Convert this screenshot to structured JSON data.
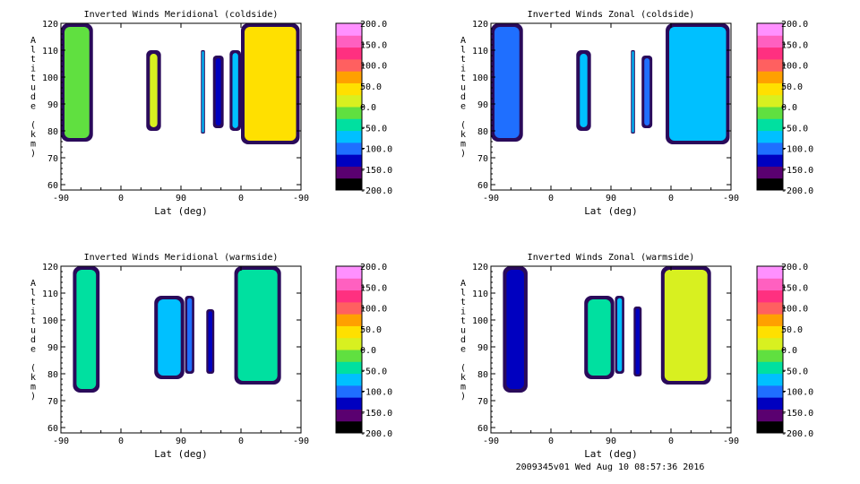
{
  "footer": "2009345v01 Wed Aug 10 08:57:36 2016",
  "colorbar_labels": [
    "200.0",
    "150.0",
    "100.0",
    "50.0",
    "0.0",
    "-50.0",
    "-100.0",
    "-150.0",
    "-200.0"
  ],
  "colorbar_colors": [
    "#000000",
    "#5a0070",
    "#0000c0",
    "#1f6fff",
    "#00c0ff",
    "#00e0a0",
    "#60e040",
    "#d8f020",
    "#ffe000",
    "#ffa000",
    "#ff6060",
    "#ff3080",
    "#ff60c0",
    "#ff90ff"
  ],
  "chart_data": [
    {
      "type": "heatmap",
      "title": "Inverted Winds Meridional (coldside)",
      "xlabel": "Lat (deg)",
      "ylabel": "Altitude (km)",
      "x_ticks": [
        "-90",
        "0",
        "90",
        "0",
        "-90"
      ],
      "y_ticks": [
        "60",
        "70",
        "80",
        "90",
        "100",
        "110",
        "120"
      ],
      "ylim": [
        58,
        120
      ],
      "zlim": [
        -200,
        200
      ],
      "blocks": [
        {
          "x": [
            -90,
            -42
          ],
          "y": [
            76,
            120
          ],
          "value": -20
        },
        {
          "x": [
            38,
            60
          ],
          "y": [
            80,
            110
          ],
          "value": 10
        },
        {
          "x": [
            120,
            126
          ],
          "y": [
            79,
            110
          ],
          "value": -60
        },
        {
          "x": [
            138,
            154
          ],
          "y": [
            81,
            108
          ],
          "value": -120
        },
        {
          "x": [
            163,
            180
          ],
          "y": [
            80,
            110
          ],
          "value": -80
        },
        {
          "x": [
            180,
            268
          ],
          "y": [
            75,
            120
          ],
          "value": 30
        }
      ]
    },
    {
      "type": "heatmap",
      "title": "Inverted Winds Zonal (coldside)",
      "xlabel": "Lat (deg)",
      "ylabel": "Altitude (km)",
      "x_ticks": [
        "-90",
        "0",
        "90",
        "0",
        "-90"
      ],
      "y_ticks": [
        "60",
        "70",
        "80",
        "90",
        "100",
        "110",
        "120"
      ],
      "ylim": [
        58,
        120
      ],
      "zlim": [
        -200,
        200
      ],
      "blocks": [
        {
          "x": [
            -90,
            -42
          ],
          "y": [
            76,
            120
          ],
          "value": -90
        },
        {
          "x": [
            38,
            60
          ],
          "y": [
            80,
            110
          ],
          "value": -60
        },
        {
          "x": [
            120,
            126
          ],
          "y": [
            79,
            110
          ],
          "value": -70
        },
        {
          "x": [
            136,
            152
          ],
          "y": [
            81,
            108
          ],
          "value": -110
        },
        {
          "x": [
            172,
            268
          ],
          "y": [
            75,
            120
          ],
          "value": -60
        }
      ]
    },
    {
      "type": "heatmap",
      "title": "Inverted Winds Meridional (warmside)",
      "xlabel": "Lat (deg)",
      "ylabel": "Altitude (km)",
      "x_ticks": [
        "-90",
        "0",
        "90",
        "0",
        "-90"
      ],
      "y_ticks": [
        "60",
        "70",
        "80",
        "90",
        "100",
        "110",
        "120"
      ],
      "ylim": [
        58,
        120
      ],
      "zlim": [
        -200,
        200
      ],
      "blocks": [
        {
          "x": [
            -72,
            -32
          ],
          "y": [
            73,
            120
          ],
          "value": -40
        },
        {
          "x": [
            50,
            95
          ],
          "y": [
            78,
            109
          ],
          "value": -70
        },
        {
          "x": [
            96,
            110
          ],
          "y": [
            80,
            109
          ],
          "value": -90
        },
        {
          "x": [
            128,
            140
          ],
          "y": [
            80,
            104
          ],
          "value": -130
        },
        {
          "x": [
            170,
            240
          ],
          "y": [
            76,
            120
          ],
          "value": -40
        }
      ]
    },
    {
      "type": "heatmap",
      "title": "Inverted Winds Zonal (warmside)",
      "xlabel": "Lat (deg)",
      "ylabel": "Altitude (km)",
      "x_ticks": [
        "-90",
        "0",
        "90",
        "0",
        "-90"
      ],
      "y_ticks": [
        "60",
        "70",
        "80",
        "90",
        "100",
        "110",
        "120"
      ],
      "ylim": [
        58,
        120
      ],
      "zlim": [
        -200,
        200
      ],
      "blocks": [
        {
          "x": [
            -72,
            -35
          ],
          "y": [
            73,
            120
          ],
          "value": -120
        },
        {
          "x": [
            50,
            95
          ],
          "y": [
            78,
            109
          ],
          "value": -30
        },
        {
          "x": [
            96,
            110
          ],
          "y": [
            80,
            109
          ],
          "value": -60
        },
        {
          "x": [
            124,
            136
          ],
          "y": [
            79,
            105
          ],
          "value": -130
        },
        {
          "x": [
            165,
            240
          ],
          "y": [
            76,
            120
          ],
          "value": 0
        }
      ]
    }
  ]
}
